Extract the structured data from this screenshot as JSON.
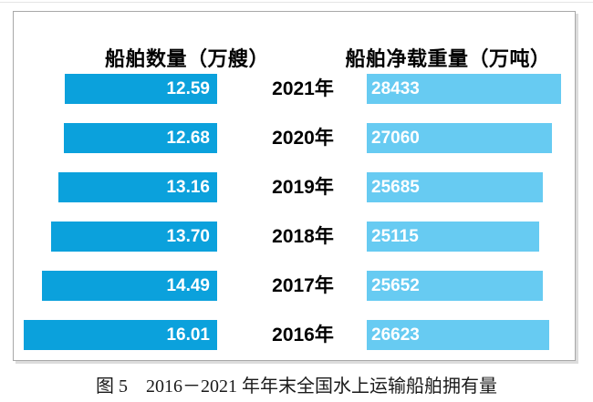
{
  "figure": {
    "caption": "图 5　2016－2021 年年末全国水上运输船舶拥有量"
  },
  "chart_data": {
    "type": "bar",
    "orientation": "horizontal-diverging",
    "title": "图 5　2016－2021 年年末全国水上运输船舶拥有量",
    "categories": [
      "2021年",
      "2020年",
      "2019年",
      "2018年",
      "2017年",
      "2016年"
    ],
    "series": [
      {
        "name": "船舶数量（万艘）",
        "direction": "left",
        "values": [
          12.59,
          12.68,
          13.16,
          13.7,
          14.49,
          16.01
        ],
        "labels": [
          "12.59",
          "12.68",
          "13.16",
          "13.70",
          "14.49",
          "16.01"
        ],
        "xlim": [
          0,
          16.45
        ],
        "color": "#0ba1dc"
      },
      {
        "name": "船舶净载重量（万吨）",
        "direction": "right",
        "values": [
          28433,
          27060,
          25685,
          25115,
          25652,
          26623
        ],
        "labels": [
          "28433",
          "27060",
          "25685",
          "25115",
          "25652",
          "26623"
        ],
        "xlim": [
          0,
          28500
        ],
        "color": "#67cbf2"
      }
    ],
    "grid": false,
    "legend_position": "column-headers",
    "value_label_color": "#ffffff",
    "category_label_color": "#000000"
  }
}
